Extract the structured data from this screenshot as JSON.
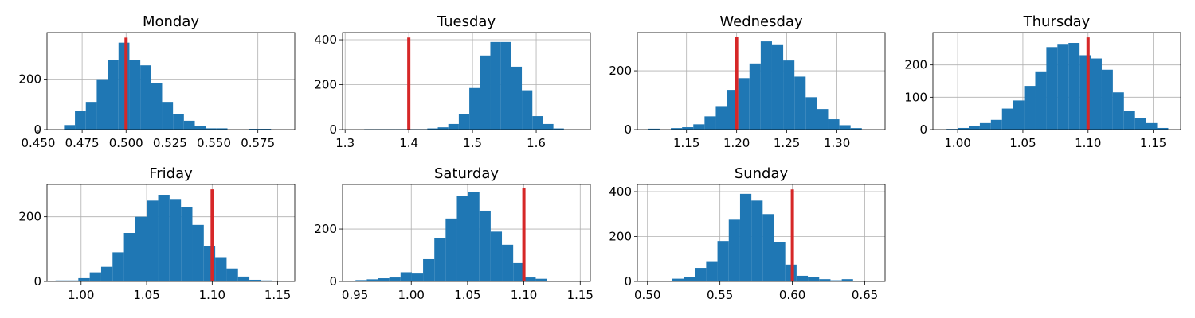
{
  "colors": {
    "bar": "#1f77b4",
    "marker": "#d62728"
  },
  "chart_data": [
    {
      "type": "bar",
      "title": "Monday",
      "grid": true,
      "xlim": [
        0.455,
        0.596
      ],
      "ylim": [
        0,
        385
      ],
      "xticks": [
        "0.450",
        "0.475",
        "0.500",
        "0.525",
        "0.550",
        "0.575"
      ],
      "yticks": [
        "0",
        "200"
      ],
      "bin_edges": [
        0.4647,
        0.4709,
        0.4771,
        0.4833,
        0.4895,
        0.4957,
        0.5019,
        0.5081,
        0.5143,
        0.5205,
        0.5267,
        0.5329,
        0.5391,
        0.5453,
        0.5515,
        0.5577,
        0.5639,
        0.5701,
        0.5763,
        0.5825,
        0.5887
      ],
      "counts": [
        18,
        75,
        110,
        200,
        275,
        345,
        275,
        255,
        185,
        110,
        60,
        35,
        15,
        5,
        5,
        0,
        0,
        3,
        3,
        0
      ],
      "marker": {
        "x": 0.5,
        "top": 365
      }
    },
    {
      "type": "bar",
      "title": "Tuesday",
      "grid": true,
      "xlim": [
        1.296,
        1.685
      ],
      "ylim": [
        0,
        432
      ],
      "xticks": [
        "1.3",
        "1.4",
        "1.5",
        "1.6"
      ],
      "yticks": [
        "0",
        "200",
        "400"
      ],
      "bin_edges": [
        1.33,
        1.3465,
        1.363,
        1.3795,
        1.396,
        1.4125,
        1.429,
        1.4455,
        1.462,
        1.4785,
        1.495,
        1.5115,
        1.528,
        1.5445,
        1.561,
        1.5775,
        1.594,
        1.6105,
        1.627,
        1.6435,
        1.66
      ],
      "counts": [
        2,
        2,
        2,
        2,
        2,
        2,
        5,
        10,
        25,
        70,
        185,
        330,
        390,
        390,
        280,
        175,
        60,
        25,
        5,
        0
      ],
      "marker": {
        "x": 1.4,
        "top": 410
      }
    },
    {
      "type": "bar",
      "title": "Wednesday",
      "grid": true,
      "xlim": [
        1.101,
        1.348
      ],
      "ylim": [
        0,
        330
      ],
      "xticks": [
        "1.15",
        "1.20",
        "1.25",
        "1.30"
      ],
      "yticks": [
        "0",
        "200"
      ],
      "bin_edges": [
        1.112,
        1.1232,
        1.1344,
        1.1456,
        1.1568,
        1.168,
        1.1792,
        1.1904,
        1.2016,
        1.2128,
        1.224,
        1.2352,
        1.2464,
        1.2576,
        1.2688,
        1.28,
        1.2912,
        1.3024,
        1.3136,
        1.3248,
        1.336
      ],
      "counts": [
        3,
        0,
        5,
        8,
        18,
        45,
        80,
        135,
        175,
        225,
        300,
        290,
        235,
        180,
        110,
        70,
        35,
        15,
        5,
        0
      ],
      "marker": {
        "x": 1.2,
        "top": 315
      }
    },
    {
      "type": "bar",
      "title": "Thursday",
      "grid": true,
      "xlim": [
        0.981,
        1.171
      ],
      "ylim": [
        0,
        300
      ],
      "xticks": [
        "1.00",
        "1.05",
        "1.10",
        "1.15"
      ],
      "yticks": [
        "0",
        "100",
        "200"
      ],
      "bin_edges": [
        0.9915,
        1.0,
        1.0085,
        1.017,
        1.0255,
        1.034,
        1.0425,
        1.051,
        1.0595,
        1.068,
        1.0765,
        1.085,
        1.0935,
        1.102,
        1.1105,
        1.119,
        1.1275,
        1.136,
        1.1445,
        1.153,
        1.1615
      ],
      "counts": [
        2,
        5,
        12,
        20,
        30,
        65,
        90,
        135,
        180,
        255,
        265,
        268,
        230,
        220,
        185,
        115,
        58,
        35,
        20,
        5
      ],
      "marker": {
        "x": 1.1,
        "top": 285
      }
    },
    {
      "type": "bar",
      "title": "Friday",
      "grid": true,
      "xlim": [
        0.974,
        1.163
      ],
      "ylim": [
        0,
        300
      ],
      "xticks": [
        "1.00",
        "1.05",
        "1.10",
        "1.15"
      ],
      "yticks": [
        "0",
        "200"
      ],
      "bin_edges": [
        0.9805,
        0.9892,
        0.9979,
        1.0066,
        1.0153,
        1.024,
        1.0327,
        1.0414,
        1.0501,
        1.0588,
        1.0675,
        1.0762,
        1.0849,
        1.0936,
        1.1023,
        1.111,
        1.1197,
        1.1284,
        1.1371,
        1.1458,
        1.1545
      ],
      "counts": [
        3,
        3,
        10,
        28,
        45,
        90,
        150,
        200,
        250,
        268,
        255,
        230,
        175,
        110,
        75,
        40,
        15,
        5,
        3,
        0
      ],
      "marker": {
        "x": 1.1,
        "top": 285
      }
    },
    {
      "type": "bar",
      "title": "Saturday",
      "grid": true,
      "xlim": [
        0.939,
        1.159
      ],
      "ylim": [
        0,
        370
      ],
      "xticks": [
        "0.95",
        "1.00",
        "1.05",
        "1.10",
        "1.15"
      ],
      "yticks": [
        "0",
        "200"
      ],
      "bin_edges": [
        0.9505,
        0.9605,
        0.9705,
        0.9805,
        0.9905,
        1.0005,
        1.0105,
        1.0205,
        1.0305,
        1.0405,
        1.0505,
        1.0605,
        1.0705,
        1.0805,
        1.0905,
        1.1005,
        1.1105,
        1.1205,
        1.1305,
        1.1405,
        1.1505
      ],
      "counts": [
        5,
        8,
        12,
        15,
        35,
        30,
        85,
        165,
        240,
        325,
        340,
        270,
        190,
        140,
        70,
        15,
        10,
        0,
        0,
        0
      ],
      "marker": {
        "x": 1.1,
        "top": 355
      }
    },
    {
      "type": "bar",
      "title": "Sunday",
      "grid": true,
      "xlim": [
        0.493,
        0.664
      ],
      "ylim": [
        0,
        432
      ],
      "xticks": [
        "0.50",
        "0.55",
        "0.60",
        "0.65"
      ],
      "yticks": [
        "0",
        "200",
        "400"
      ],
      "bin_edges": [
        0.5015,
        0.5093,
        0.5171,
        0.5249,
        0.5327,
        0.5405,
        0.5483,
        0.5561,
        0.5639,
        0.5717,
        0.5795,
        0.5873,
        0.5951,
        0.6029,
        0.6107,
        0.6185,
        0.6263,
        0.6341,
        0.6419,
        0.6497,
        0.6575
      ],
      "counts": [
        3,
        3,
        12,
        20,
        60,
        90,
        180,
        275,
        390,
        360,
        300,
        175,
        75,
        25,
        20,
        10,
        5,
        10,
        0,
        3
      ],
      "marker": {
        "x": 0.6,
        "top": 410
      }
    }
  ]
}
